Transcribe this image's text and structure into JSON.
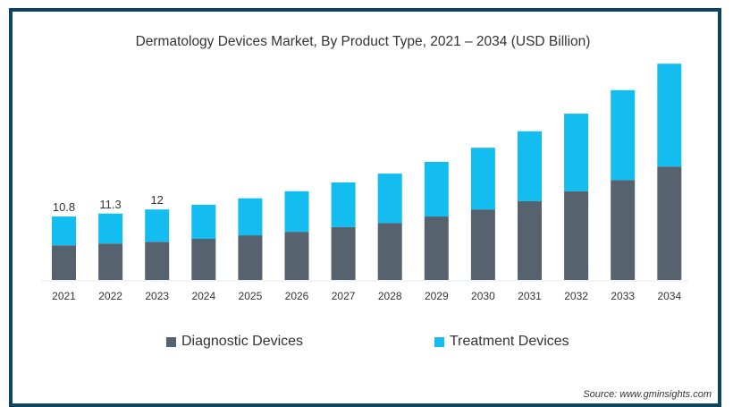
{
  "chart_data": {
    "type": "bar",
    "stacked": true,
    "title": "Dermatology Devices Market, By Product Type, 2021 – 2034 (USD Billion)",
    "xlabel": "",
    "ylabel": "",
    "categories": [
      "2021",
      "2022",
      "2023",
      "2024",
      "2025",
      "2026",
      "2027",
      "2028",
      "2029",
      "2030",
      "2031",
      "2032",
      "2033",
      "2034"
    ],
    "series": [
      {
        "name": "Diagnostic Devices",
        "color": "#56626e",
        "values": [
          5.9,
          6.2,
          6.5,
          7.0,
          7.6,
          8.2,
          9.0,
          9.7,
          10.8,
          12.0,
          13.4,
          15.1,
          17.0,
          19.3
        ]
      },
      {
        "name": "Treatment Devices",
        "color": "#14bdf0",
        "values": [
          4.9,
          5.1,
          5.5,
          5.8,
          6.3,
          6.9,
          7.6,
          8.4,
          9.3,
          10.5,
          11.9,
          13.2,
          15.3,
          17.5
        ]
      }
    ],
    "totals_labels": [
      {
        "category": "2021",
        "label": "10.8"
      },
      {
        "category": "2022",
        "label": "11.3"
      },
      {
        "category": "2023",
        "label": "12"
      }
    ],
    "ylim": [
      0,
      37
    ],
    "grid": false,
    "legend_position": "bottom"
  },
  "source": "Source: www.gminsights.com"
}
